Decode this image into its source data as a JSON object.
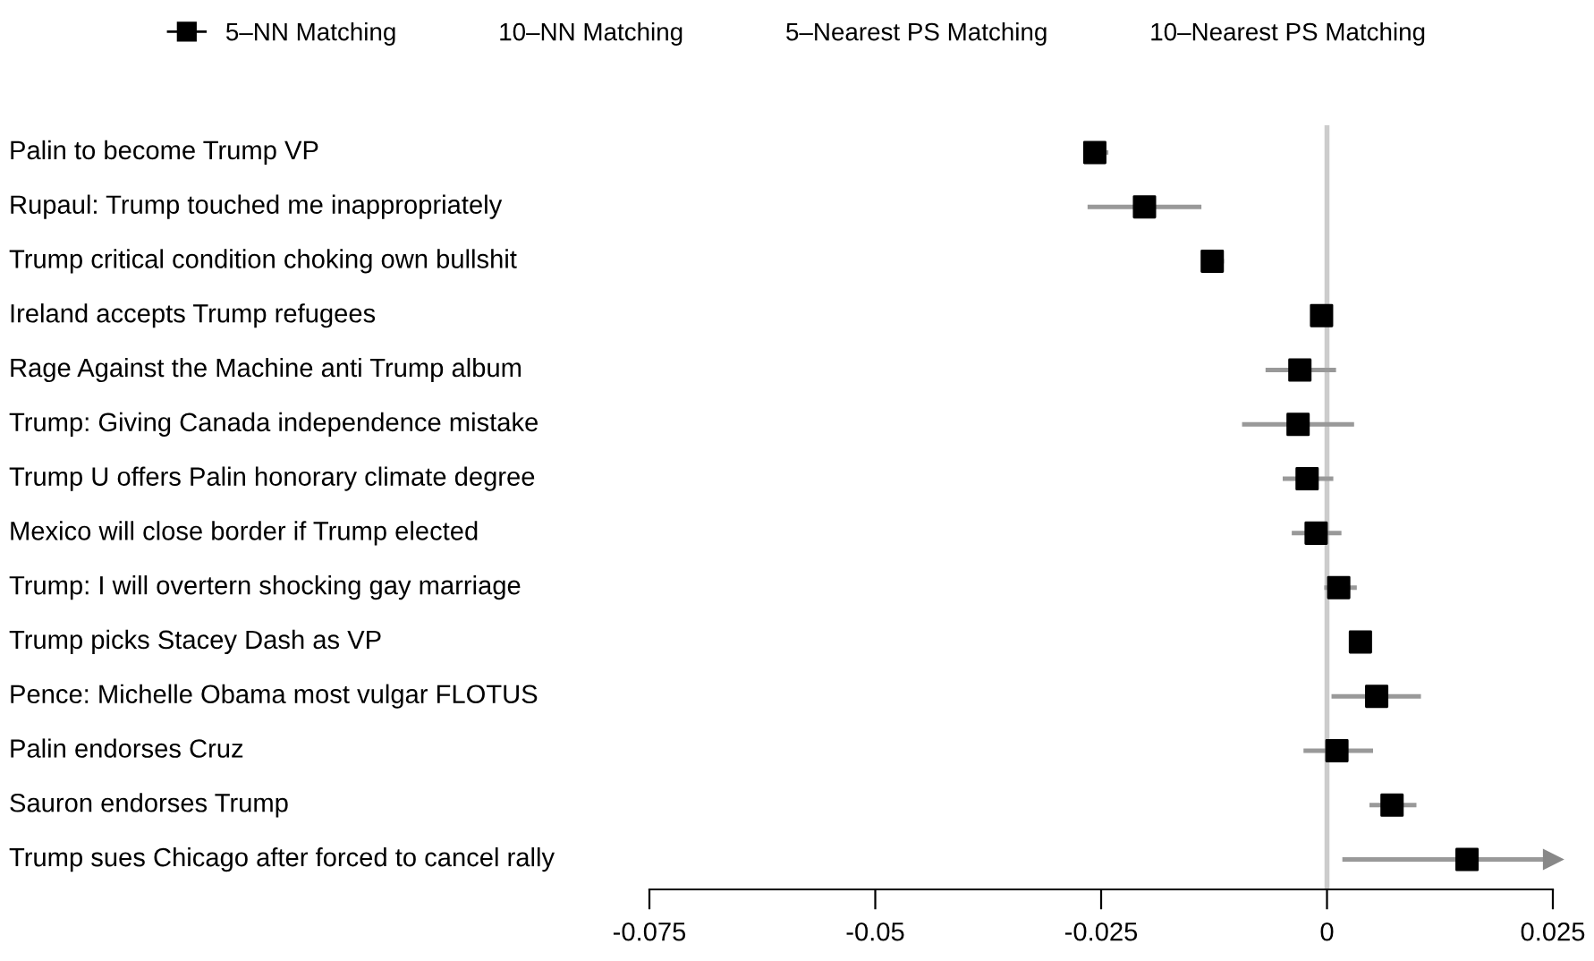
{
  "chart_data": {
    "type": "scatter",
    "orientation": "horizontal",
    "categories": [
      "Palin to become Trump VP",
      "Rupaul: Trump touched me inappropriately",
      "Trump critical condition choking own bullshit",
      "Ireland accepts Trump refugees",
      "Rage Against the Machine anti Trump album",
      "Trump: Giving Canada independence mistake",
      "Trump U offers Palin honorary climate degree",
      "Mexico will close border if Trump elected",
      "Trump: I will overtern shocking gay marriage",
      "Trump picks Stacey Dash as VP",
      "Pence: Michelle Obama most vulgar FLOTUS",
      "Palin endorses Cruz",
      "Sauron endorses Trump",
      "Trump sues Chicago after forced to cancel rally"
    ],
    "series": [
      {
        "name": "5–NN Matching",
        "color": "#000000",
        "marker": "square",
        "values": [
          -0.0257,
          -0.0202,
          -0.0127,
          -0.0006,
          -0.003,
          -0.0032,
          -0.0022,
          -0.0012,
          0.0013,
          0.0037,
          0.0055,
          0.0011,
          0.0072,
          0.0155
        ],
        "errors": [
          [
            -0.0269,
            -0.0242
          ],
          [
            -0.0265,
            -0.0139
          ],
          [
            -0.0139,
            -0.0114
          ],
          null,
          [
            -0.0068,
            0.001
          ],
          [
            -0.0094,
            0.003
          ],
          [
            -0.0049,
            0.0007
          ],
          [
            -0.0039,
            0.0016
          ],
          [
            -0.0003,
            0.0033
          ],
          null,
          [
            0.0005,
            0.0104
          ],
          [
            -0.0026,
            0.0051
          ],
          [
            0.0047,
            0.0099
          ],
          [
            0.0017,
            0.025
          ]
        ]
      },
      {
        "name": "10–NN Matching",
        "marker": "none",
        "values": [
          null,
          null,
          null,
          null,
          null,
          null,
          null,
          null,
          null,
          null,
          null,
          null,
          null,
          null
        ]
      },
      {
        "name": "5–Nearest PS Matching",
        "marker": "none",
        "values": [
          null,
          null,
          null,
          null,
          null,
          null,
          null,
          null,
          null,
          null,
          null,
          null,
          null,
          null
        ]
      },
      {
        "name": "10–Nearest PS Matching",
        "marker": "none",
        "values": [
          null,
          null,
          null,
          null,
          null,
          null,
          null,
          null,
          null,
          null,
          null,
          null,
          null,
          null
        ]
      }
    ],
    "xlim": [
      -0.075,
      0.025
    ],
    "xticks": [
      -0.075,
      -0.05,
      -0.025,
      0,
      0.025
    ],
    "ref_lines": [
      {
        "axis": "x",
        "value": 0,
        "color": "#cccccc"
      }
    ],
    "grid": false,
    "legend": "top",
    "tick_labels": "x"
  }
}
